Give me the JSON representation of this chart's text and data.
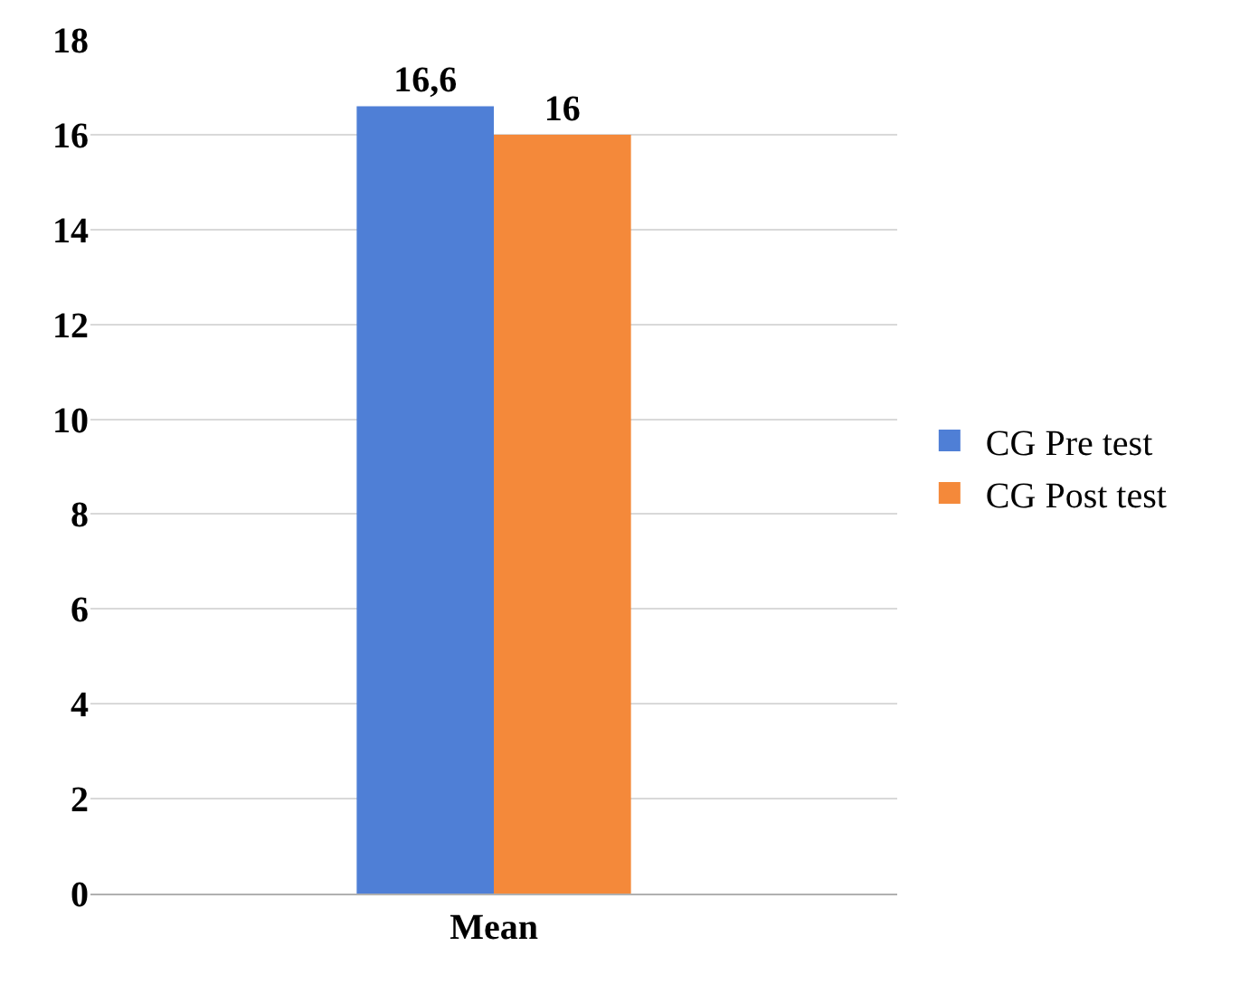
{
  "chart_data": {
    "type": "bar",
    "categories": [
      "Mean"
    ],
    "series": [
      {
        "name": "CG Pre test",
        "color": "#4f7fd6",
        "values": [
          16.6
        ],
        "value_labels": [
          "16,6"
        ]
      },
      {
        "name": "CG Post test",
        "color": "#f4893a",
        "values": [
          16
        ],
        "value_labels": [
          "16"
        ]
      }
    ],
    "ylim": [
      0,
      18
    ],
    "yticks": [
      0,
      2,
      4,
      6,
      8,
      10,
      12,
      14,
      16,
      18
    ],
    "grid": "y",
    "legend": "right"
  }
}
